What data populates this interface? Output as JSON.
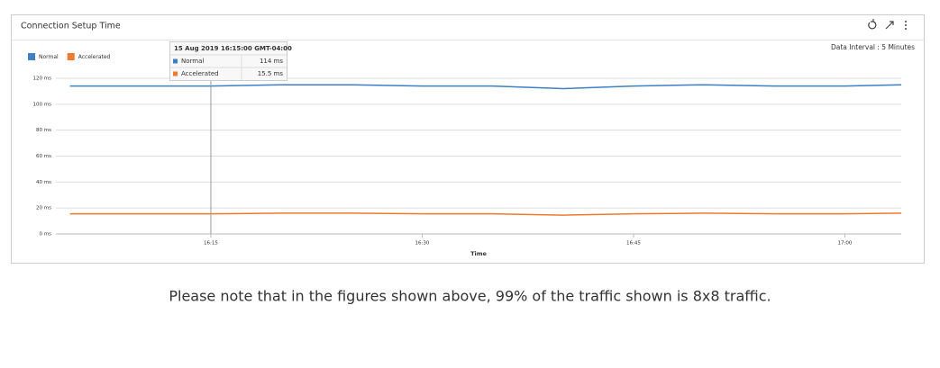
{
  "chart_data": {
    "type": "line",
    "title": "Connection Setup Time",
    "subtitle": "Data Interval : 5 Minutes",
    "x_label": "Time",
    "x": [
      "16:05",
      "16:10",
      "16:15",
      "16:20",
      "16:25",
      "16:30",
      "16:35",
      "16:40",
      "16:45",
      "16:50",
      "16:55",
      "17:00",
      "17:04"
    ],
    "xlim": [
      "16:04",
      "17:04"
    ],
    "xticks": [
      "16:15",
      "16:30",
      "16:45",
      "17:00"
    ],
    "ylim": [
      0,
      120
    ],
    "yticks": [
      {
        "value": 0,
        "label": "0 ms"
      },
      {
        "value": 20,
        "label": "20 ms"
      },
      {
        "value": 40,
        "label": "40 ms"
      },
      {
        "value": 60,
        "label": "60 ms"
      },
      {
        "value": 80,
        "label": "80 ms"
      },
      {
        "value": 100,
        "label": "100 ms"
      },
      {
        "value": 120,
        "label": "120 ms"
      }
    ],
    "grid": true,
    "legend": "top-left",
    "series": [
      {
        "name": "Normal",
        "color": "#3f7fc7",
        "values": [
          114,
          114,
          114,
          115,
          115,
          114,
          114,
          112,
          114,
          115,
          114,
          114,
          115
        ]
      },
      {
        "name": "Accelerated",
        "color": "#f07a2e",
        "values": [
          15.5,
          15.5,
          15.5,
          16,
          16,
          15.5,
          15.5,
          14.5,
          15.5,
          16,
          15.5,
          15.5,
          16
        ]
      }
    ],
    "tooltip": {
      "index": 2,
      "title": "15 Aug 2019 16:15:00 GMT-04:00",
      "value_labels": [
        "114 ms",
        "15.5 ms"
      ]
    }
  },
  "note": "Please note that in the figures shown above, 99% of the traffic shown is 8x8 traffic."
}
